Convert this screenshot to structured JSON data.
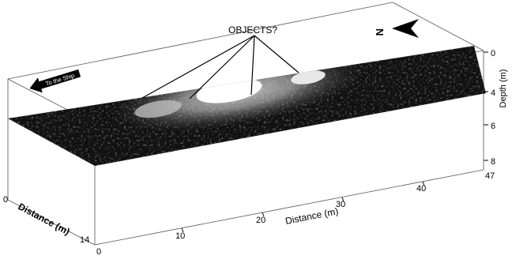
{
  "annotation": {
    "text": "OBJECTS?"
  },
  "north": {
    "letter": "N",
    "icon": "north-arrow-icon"
  },
  "ship": {
    "text": "To the Ship",
    "icon": "ship-direction-arrow-icon"
  },
  "depth_axis": {
    "label": "Depth (m)",
    "ticks": [
      "0",
      "4",
      "6",
      "8"
    ]
  },
  "distance_x_axis": {
    "label": "Distance (m)",
    "ticks": [
      "0",
      "10",
      "20",
      "30",
      "40",
      "47"
    ]
  },
  "distance_y_axis": {
    "label": "Distance (m)",
    "ticks": [
      "0",
      "14"
    ]
  },
  "colors": {
    "slice_dark": "#111111",
    "highlight": "#ffffff",
    "frame": "#555555"
  }
}
